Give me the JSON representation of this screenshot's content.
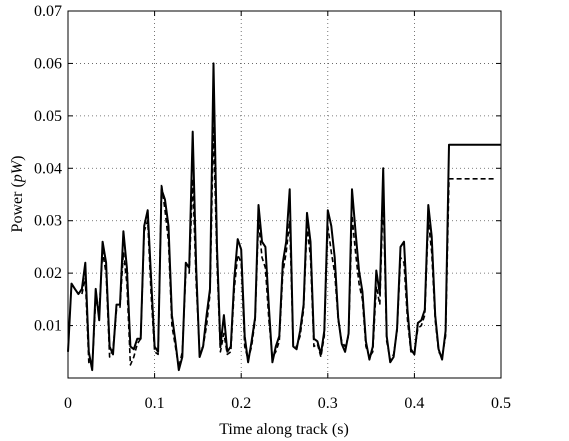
{
  "chart_data": {
    "type": "line",
    "xlabel": "Time along track (s)",
    "ylabel_prefix": "Power (",
    "ylabel_unit": "pW",
    "ylabel_suffix": ")",
    "xlim": [
      0,
      0.5
    ],
    "ylim": [
      0,
      0.07
    ],
    "xticks": [
      0,
      0.1,
      0.2,
      0.3,
      0.4,
      0.5
    ],
    "xtick_labels": [
      "0",
      "0.1",
      "0.2",
      "0.3",
      "0.4",
      "0.5"
    ],
    "yticks": [
      0.01,
      0.02,
      0.03,
      0.04,
      0.05,
      0.06,
      0.07
    ],
    "ytick_labels": [
      "0.01",
      "0.02",
      "0.03",
      "0.04",
      "0.05",
      "0.06",
      "0.07"
    ],
    "grid": true,
    "series": [
      {
        "style": "solid",
        "x": [
          0.0,
          0.004,
          0.008,
          0.012,
          0.016,
          0.02,
          0.024,
          0.028,
          0.032,
          0.036,
          0.04,
          0.044,
          0.048,
          0.052,
          0.056,
          0.06,
          0.064,
          0.068,
          0.072,
          0.076,
          0.08,
          0.084,
          0.088,
          0.092,
          0.096,
          0.1,
          0.104,
          0.108,
          0.112,
          0.116,
          0.12,
          0.124,
          0.128,
          0.132,
          0.136,
          0.14,
          0.144,
          0.148,
          0.152,
          0.156,
          0.16,
          0.164,
          0.168,
          0.172,
          0.176,
          0.18,
          0.184,
          0.188,
          0.192,
          0.196,
          0.2,
          0.204,
          0.208,
          0.212,
          0.216,
          0.22,
          0.224,
          0.228,
          0.232,
          0.236,
          0.24,
          0.244,
          0.248,
          0.252,
          0.256,
          0.26,
          0.264,
          0.268,
          0.272,
          0.276,
          0.28,
          0.284,
          0.288,
          0.292,
          0.296,
          0.3,
          0.304,
          0.308,
          0.312,
          0.316,
          0.32,
          0.324,
          0.328,
          0.332,
          0.336,
          0.34,
          0.344,
          0.348,
          0.352,
          0.356,
          0.36,
          0.364,
          0.368,
          0.372,
          0.376,
          0.38,
          0.384,
          0.388,
          0.392,
          0.396,
          0.4,
          0.404,
          0.408,
          0.412,
          0.416,
          0.42,
          0.424,
          0.428,
          0.432,
          0.436,
          0.44,
          0.444,
          0.448,
          0.452,
          0.456,
          0.46,
          0.464,
          0.468,
          0.472,
          0.476,
          0.48,
          0.484,
          0.488,
          0.492,
          0.496,
          0.5
        ],
        "y": [
          0.005,
          0.018,
          0.017,
          0.016,
          0.017,
          0.022,
          0.005,
          0.0015,
          0.017,
          0.011,
          0.026,
          0.022,
          0.006,
          0.0045,
          0.014,
          0.014,
          0.028,
          0.021,
          0.006,
          0.0055,
          0.0075,
          0.0075,
          0.029,
          0.032,
          0.019,
          0.006,
          0.005,
          0.036,
          0.034,
          0.029,
          0.012,
          0.007,
          0.0015,
          0.004,
          0.022,
          0.021,
          0.047,
          0.021,
          0.004,
          0.006,
          0.012,
          0.017,
          0.06,
          0.025,
          0.006,
          0.012,
          0.005,
          0.006,
          0.019,
          0.0265,
          0.0245,
          0.008,
          0.003,
          0.007,
          0.0115,
          0.033,
          0.026,
          0.025,
          0.0135,
          0.003,
          0.006,
          0.008,
          0.022,
          0.026,
          0.036,
          0.006,
          0.0055,
          0.009,
          0.014,
          0.0315,
          0.026,
          0.0075,
          0.007,
          0.0045,
          0.009,
          0.032,
          0.029,
          0.023,
          0.0115,
          0.0065,
          0.005,
          0.0085,
          0.036,
          0.028,
          0.0205,
          0.0165,
          0.007,
          0.0035,
          0.006,
          0.0205,
          0.016,
          0.04,
          0.008,
          0.003,
          0.004,
          0.0095,
          0.025,
          0.026,
          0.013,
          0.0055,
          0.0045,
          0.0105,
          0.011,
          0.013,
          0.033,
          0.027,
          0.012,
          0.0055,
          0.0035,
          0.009,
          0.0445,
          0.0445,
          0.0445,
          0.0445,
          0.0445,
          0.0445,
          0.0445,
          0.0445,
          0.0445,
          0.0445,
          0.0445,
          0.0445,
          0.0445,
          0.0445,
          0.0445,
          0.0445
        ]
      },
      {
        "style": "dashed",
        "x": [
          0.016,
          0.02,
          0.024,
          0.028,
          0.032,
          0.036,
          0.04,
          0.044,
          0.048,
          0.052,
          0.056,
          0.06,
          0.064,
          0.068,
          0.072,
          0.076,
          0.08,
          0.084,
          0.088,
          0.092,
          0.096,
          0.1,
          0.104,
          0.108,
          0.112,
          0.116,
          0.12,
          0.124,
          0.128,
          0.132,
          0.136,
          0.14,
          0.144,
          0.148,
          0.152,
          0.156,
          0.16,
          0.164,
          0.168,
          0.172,
          0.176,
          0.18,
          0.184,
          0.188,
          0.192,
          0.196,
          0.2,
          0.204,
          0.208,
          0.212,
          0.216,
          0.22,
          0.224,
          0.228,
          0.232,
          0.236,
          0.24,
          0.244,
          0.248,
          0.252,
          0.256,
          0.26,
          0.264,
          0.268,
          0.272,
          0.276,
          0.28,
          0.284,
          0.288,
          0.292,
          0.296,
          0.3,
          0.304,
          0.308,
          0.312,
          0.316,
          0.32,
          0.324,
          0.328,
          0.332,
          0.336,
          0.34,
          0.344,
          0.348,
          0.352,
          0.356,
          0.36,
          0.364,
          0.368,
          0.372,
          0.376,
          0.38,
          0.384,
          0.388,
          0.392,
          0.396,
          0.4,
          0.404,
          0.408,
          0.412,
          0.416,
          0.42,
          0.424,
          0.428,
          0.432,
          0.436,
          0.44,
          0.444,
          0.448,
          0.452,
          0.456,
          0.46,
          0.464,
          0.468,
          0.472,
          0.476,
          0.48,
          0.484,
          0.488,
          0.492
        ],
        "y": [
          0.016,
          0.019,
          0.003,
          0.002,
          0.015,
          0.013,
          0.024,
          0.02,
          0.004,
          0.0055,
          0.013,
          0.0135,
          0.024,
          0.018,
          0.0025,
          0.004,
          0.0065,
          0.0075,
          0.028,
          0.03,
          0.016,
          0.005,
          0.0045,
          0.037,
          0.032,
          0.026,
          0.01,
          0.006,
          0.002,
          0.005,
          0.02,
          0.02,
          0.038,
          0.018,
          0.005,
          0.006,
          0.01,
          0.016,
          0.048,
          0.022,
          0.005,
          0.0085,
          0.0045,
          0.005,
          0.017,
          0.0235,
          0.022,
          0.006,
          0.0035,
          0.006,
          0.011,
          0.03,
          0.023,
          0.021,
          0.011,
          0.004,
          0.005,
          0.007,
          0.02,
          0.024,
          0.03,
          0.006,
          0.006,
          0.008,
          0.013,
          0.029,
          0.023,
          0.006,
          0.0065,
          0.004,
          0.008,
          0.029,
          0.024,
          0.02,
          0.011,
          0.007,
          0.006,
          0.008,
          0.031,
          0.024,
          0.018,
          0.015,
          0.006,
          0.004,
          0.005,
          0.0175,
          0.014,
          0.035,
          0.007,
          0.0035,
          0.0045,
          0.009,
          0.023,
          0.022,
          0.011,
          0.005,
          0.005,
          0.0095,
          0.01,
          0.012,
          0.03,
          0.024,
          0.011,
          0.005,
          0.004,
          0.008,
          0.038,
          0.038,
          0.038,
          0.038,
          0.038,
          0.038,
          0.038,
          0.038,
          0.038,
          0.038,
          0.038,
          0.038,
          0.038,
          0.038
        ]
      }
    ]
  }
}
